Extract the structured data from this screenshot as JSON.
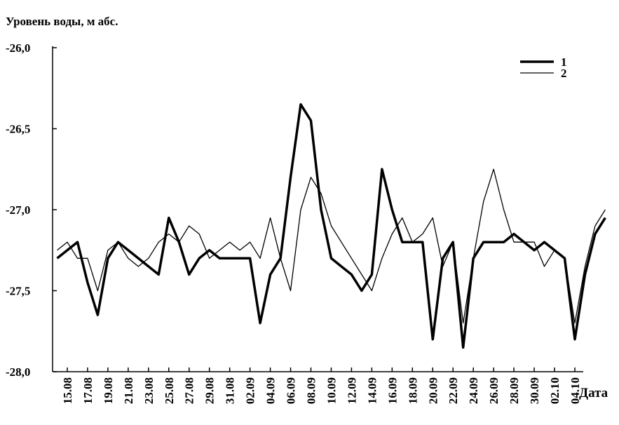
{
  "chart_data": {
    "type": "line",
    "y_label": "Уровень воды, м абс.",
    "x_label": "Дата",
    "categories": [
      null,
      "15.08",
      null,
      "17.08",
      null,
      "19.08",
      null,
      "21.08",
      null,
      "23.08",
      null,
      "25.08",
      null,
      "27.08",
      null,
      "29.08",
      null,
      "31.08",
      null,
      "02.09",
      null,
      "04.09",
      null,
      "06.09",
      null,
      "08.09",
      null,
      "10.09",
      null,
      "12.09",
      null,
      "14.09",
      null,
      "16.09",
      null,
      "18.09",
      null,
      "20.09",
      null,
      "22.09",
      null,
      "24.09",
      null,
      "26.09",
      null,
      "28.09",
      null,
      "30.09",
      null,
      "02.10",
      null,
      "04.10",
      null,
      null,
      null
    ],
    "series": [
      {
        "name": "1",
        "color": "#000000",
        "line_width": 3.5,
        "values": [
          -27.3,
          -27.25,
          -27.2,
          -27.45,
          -27.65,
          -27.3,
          -27.2,
          -27.25,
          -27.3,
          -27.35,
          -27.4,
          -27.05,
          -27.2,
          -27.4,
          -27.3,
          -27.25,
          -27.3,
          -27.3,
          -27.3,
          -27.3,
          -27.7,
          -27.4,
          -27.3,
          -26.8,
          -26.35,
          -26.45,
          -27.0,
          -27.3,
          -27.35,
          -27.4,
          -27.5,
          -27.4,
          -26.75,
          -27.0,
          -27.2,
          -27.2,
          -27.2,
          -27.8,
          -27.3,
          -27.2,
          -27.85,
          -27.3,
          -27.2,
          -27.2,
          -27.2,
          -27.15,
          -27.2,
          -27.25,
          -27.2,
          -27.25,
          -27.3,
          -27.8,
          -27.4,
          -27.15,
          -27.05
        ]
      },
      {
        "name": "2",
        "color": "#000000",
        "line_width": 1.3,
        "values": [
          -27.25,
          -27.2,
          -27.3,
          -27.3,
          -27.5,
          -27.25,
          -27.2,
          -27.3,
          -27.35,
          -27.3,
          -27.2,
          -27.15,
          -27.2,
          -27.1,
          -27.15,
          -27.3,
          -27.25,
          -27.2,
          -27.25,
          -27.2,
          -27.3,
          -27.05,
          -27.3,
          -27.5,
          -27.0,
          -26.8,
          -26.9,
          -27.1,
          -27.2,
          -27.3,
          -27.4,
          -27.5,
          -27.3,
          -27.15,
          -27.05,
          -27.2,
          -27.15,
          -27.05,
          -27.35,
          -27.2,
          -27.7,
          -27.3,
          -26.95,
          -26.75,
          -27.0,
          -27.2,
          -27.2,
          -27.2,
          -27.35,
          -27.25,
          -27.3,
          -27.7,
          -27.35,
          -27.1,
          -27.0
        ]
      }
    ],
    "ylim": [
      -28,
      -26
    ],
    "yticks": [
      {
        "value": -26,
        "label": "-26,0"
      },
      {
        "value": -26.5,
        "label": "-26,5"
      },
      {
        "value": -27,
        "label": "-27,0"
      },
      {
        "value": -27.5,
        "label": "-27,5"
      },
      {
        "value": -28,
        "label": "-28,0"
      }
    ],
    "legend": "upper right",
    "grid": false
  }
}
